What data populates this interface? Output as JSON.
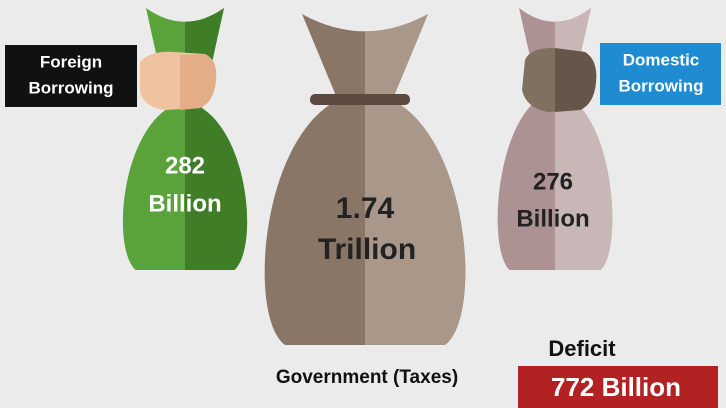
{
  "foreign_label": {
    "line1": "Foreign",
    "line2": "Borrowing"
  },
  "domestic_label": {
    "line1": "Domestic",
    "line2": "Borrowing"
  },
  "bags": [
    {
      "amount": "282",
      "unit": "Billion"
    },
    {
      "amount": "1.74",
      "unit": "Trillion",
      "caption": "Government (Taxes)"
    },
    {
      "amount": "276",
      "unit": "Billion"
    }
  ],
  "deficit": {
    "title": "Deficit",
    "value": "772 Billion"
  }
}
